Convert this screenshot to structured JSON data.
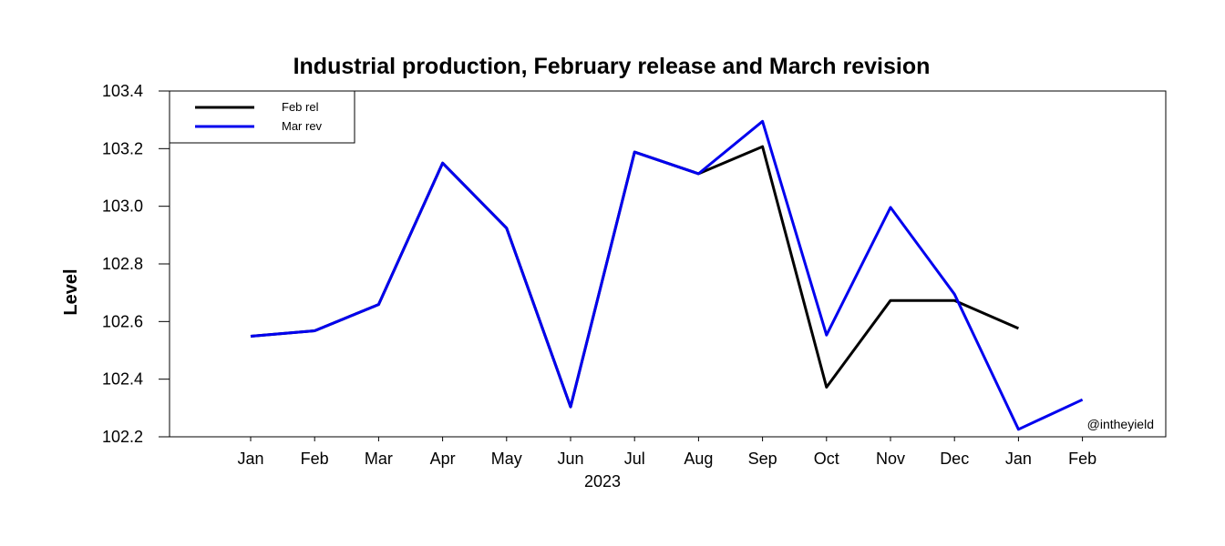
{
  "chart_data": {
    "type": "line",
    "title": "Industrial production, February release and March revision",
    "xlabel": "2023",
    "ylabel": "Level",
    "categories": [
      "Jan",
      "Feb",
      "Mar",
      "Apr",
      "May",
      "Jun",
      "Jul",
      "Aug",
      "Sep",
      "Oct",
      "Nov",
      "Dec",
      "Jan",
      "Feb"
    ],
    "yticks": [
      "102.2",
      "102.4",
      "102.6",
      "102.8",
      "103.0",
      "103.2",
      "103.4"
    ],
    "ylim": [
      102.2,
      103.4
    ],
    "grid": false,
    "legend_position": "top-left",
    "credit": "@intheyield",
    "series": [
      {
        "name": "Feb rel",
        "color": "#000000",
        "values": [
          102.549,
          102.568,
          102.659,
          103.15,
          102.924,
          102.304,
          103.188,
          103.113,
          103.207,
          102.372,
          102.673,
          102.673,
          102.576,
          null
        ]
      },
      {
        "name": "Mar rev",
        "color": "#0000ee",
        "values": [
          102.549,
          102.568,
          102.659,
          103.15,
          102.924,
          102.304,
          103.188,
          103.113,
          103.295,
          102.553,
          102.996,
          102.695,
          102.226,
          102.329
        ]
      }
    ]
  }
}
